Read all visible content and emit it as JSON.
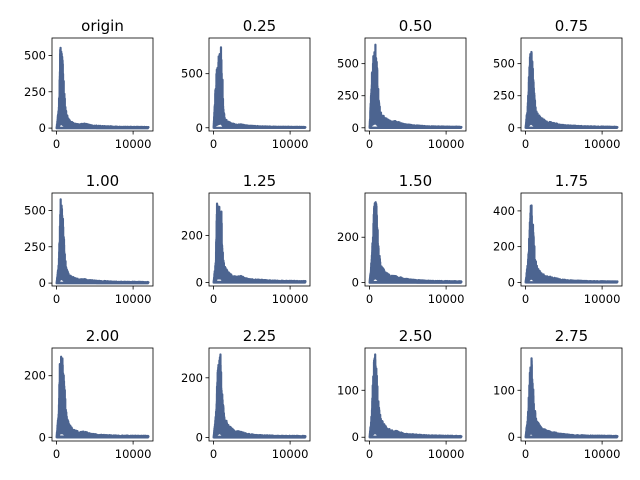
{
  "chart_data": {
    "type": "area",
    "layout": {
      "rows": 3,
      "cols": 4
    },
    "series_color": "#4c6490",
    "x_ticks": [
      0,
      10000
    ],
    "x_tick_labels": [
      "0",
      "10000"
    ],
    "xlim": [
      -600,
      12600
    ],
    "panels": [
      {
        "title": "origin",
        "ylim": [
          -20,
          620
        ],
        "y_ticks": [
          0,
          250,
          500
        ],
        "peaks": [
          [
            300,
            150
          ],
          [
            400,
            400
          ],
          [
            500,
            590
          ],
          [
            650,
            560
          ],
          [
            800,
            450
          ],
          [
            950,
            330
          ],
          [
            1100,
            180
          ],
          [
            1300,
            100
          ],
          [
            1600,
            60
          ],
          [
            2200,
            35
          ],
          [
            3000,
            25
          ],
          [
            3500,
            35
          ],
          [
            4500,
            20
          ],
          [
            6000,
            15
          ],
          [
            8000,
            10
          ],
          [
            12000,
            8
          ]
        ]
      },
      {
        "title": "0.25",
        "ylim": [
          -30,
          830
        ],
        "y_ticks": [
          0,
          500
        ],
        "peaks": [
          [
            300,
            450
          ],
          [
            450,
            560
          ],
          [
            600,
            650
          ],
          [
            750,
            720
          ],
          [
            900,
            780
          ],
          [
            1000,
            800
          ],
          [
            1150,
            500
          ],
          [
            1300,
            150
          ],
          [
            1600,
            80
          ],
          [
            2200,
            45
          ],
          [
            3000,
            30
          ],
          [
            3500,
            35
          ],
          [
            4500,
            20
          ],
          [
            6000,
            15
          ],
          [
            8000,
            10
          ],
          [
            12000,
            8
          ]
        ]
      },
      {
        "title": "0.50",
        "ylim": [
          -25,
          700
        ],
        "y_ticks": [
          0,
          250,
          500
        ],
        "peaks": [
          [
            300,
            420
          ],
          [
            450,
            550
          ],
          [
            600,
            640
          ],
          [
            750,
            670
          ],
          [
            900,
            600
          ],
          [
            1050,
            400
          ],
          [
            1250,
            200
          ],
          [
            1500,
            120
          ],
          [
            2000,
            80
          ],
          [
            2800,
            50
          ],
          [
            3500,
            55
          ],
          [
            4500,
            30
          ],
          [
            6000,
            20
          ],
          [
            8000,
            12
          ],
          [
            12000,
            8
          ]
        ]
      },
      {
        "title": "0.75",
        "ylim": [
          -25,
          700
        ],
        "y_ticks": [
          0,
          250,
          500
        ],
        "peaks": [
          [
            300,
            200
          ],
          [
            450,
            420
          ],
          [
            600,
            600
          ],
          [
            750,
            670
          ],
          [
            900,
            520
          ],
          [
            1050,
            380
          ],
          [
            1250,
            200
          ],
          [
            1500,
            120
          ],
          [
            2000,
            80
          ],
          [
            2800,
            50
          ],
          [
            3500,
            45
          ],
          [
            4500,
            25
          ],
          [
            6000,
            18
          ],
          [
            8000,
            12
          ],
          [
            12000,
            8
          ]
        ]
      },
      {
        "title": "1.00",
        "ylim": [
          -20,
          620
        ],
        "y_ticks": [
          0,
          250,
          500
        ],
        "peaks": [
          [
            300,
            150
          ],
          [
            400,
            350
          ],
          [
            500,
            590
          ],
          [
            650,
            550
          ],
          [
            800,
            500
          ],
          [
            950,
            330
          ],
          [
            1100,
            180
          ],
          [
            1300,
            100
          ],
          [
            1600,
            60
          ],
          [
            2200,
            40
          ],
          [
            3000,
            25
          ],
          [
            3500,
            30
          ],
          [
            4500,
            20
          ],
          [
            6000,
            15
          ],
          [
            8000,
            10
          ],
          [
            12000,
            8
          ]
        ]
      },
      {
        "title": "1.25",
        "ylim": [
          -15,
          380
        ],
        "y_ticks": [
          0,
          200
        ],
        "peaks": [
          [
            300,
            100
          ],
          [
            400,
            330
          ],
          [
            550,
            355
          ],
          [
            700,
            340
          ],
          [
            850,
            350
          ],
          [
            1000,
            340
          ],
          [
            1150,
            180
          ],
          [
            1300,
            90
          ],
          [
            1600,
            60
          ],
          [
            2200,
            35
          ],
          [
            3000,
            25
          ],
          [
            3500,
            30
          ],
          [
            4500,
            15
          ],
          [
            6000,
            12
          ],
          [
            8000,
            8
          ],
          [
            12000,
            6
          ]
        ]
      },
      {
        "title": "1.50",
        "ylim": [
          -15,
          395
        ],
        "y_ticks": [
          0,
          200
        ],
        "peaks": [
          [
            300,
            120
          ],
          [
            450,
            230
          ],
          [
            600,
            360
          ],
          [
            750,
            375
          ],
          [
            900,
            360
          ],
          [
            1050,
            250
          ],
          [
            1250,
            130
          ],
          [
            1500,
            80
          ],
          [
            2000,
            50
          ],
          [
            2800,
            30
          ],
          [
            3500,
            30
          ],
          [
            4500,
            18
          ],
          [
            6000,
            12
          ],
          [
            8000,
            8
          ],
          [
            12000,
            6
          ]
        ]
      },
      {
        "title": "1.75",
        "ylim": [
          -20,
          500
        ],
        "y_ticks": [
          0,
          200,
          400
        ],
        "peaks": [
          [
            300,
            120
          ],
          [
            450,
            230
          ],
          [
            600,
            400
          ],
          [
            750,
            470
          ],
          [
            900,
            380
          ],
          [
            1050,
            260
          ],
          [
            1250,
            150
          ],
          [
            1500,
            90
          ],
          [
            2000,
            55
          ],
          [
            2800,
            35
          ],
          [
            3500,
            30
          ],
          [
            4500,
            18
          ],
          [
            6000,
            12
          ],
          [
            8000,
            8
          ],
          [
            12000,
            6
          ]
        ]
      },
      {
        "title": "2.00",
        "ylim": [
          -12,
          290
        ],
        "y_ticks": [
          0,
          200
        ],
        "peaks": [
          [
            300,
            100
          ],
          [
            400,
            230
          ],
          [
            550,
            280
          ],
          [
            700,
            260
          ],
          [
            850,
            270
          ],
          [
            1000,
            200
          ],
          [
            1150,
            120
          ],
          [
            1300,
            70
          ],
          [
            1600,
            45
          ],
          [
            2200,
            25
          ],
          [
            3000,
            18
          ],
          [
            3500,
            20
          ],
          [
            4500,
            12
          ],
          [
            6000,
            8
          ],
          [
            8000,
            6
          ],
          [
            12000,
            5
          ]
        ]
      },
      {
        "title": "2.25",
        "ylim": [
          -12,
          300
        ],
        "y_ticks": [
          0,
          200
        ],
        "peaks": [
          [
            300,
            80
          ],
          [
            450,
            180
          ],
          [
            600,
            250
          ],
          [
            750,
            290
          ],
          [
            900,
            280
          ],
          [
            1050,
            200
          ],
          [
            1250,
            110
          ],
          [
            1500,
            65
          ],
          [
            2000,
            40
          ],
          [
            2800,
            22
          ],
          [
            3500,
            20
          ],
          [
            4500,
            12
          ],
          [
            6000,
            8
          ],
          [
            8000,
            6
          ],
          [
            12000,
            5
          ]
        ]
      },
      {
        "title": "2.50",
        "ylim": [
          -8,
          190
        ],
        "y_ticks": [
          0,
          100
        ],
        "peaks": [
          [
            300,
            60
          ],
          [
            450,
            130
          ],
          [
            600,
            170
          ],
          [
            750,
            182
          ],
          [
            900,
            150
          ],
          [
            1050,
            100
          ],
          [
            1250,
            60
          ],
          [
            1500,
            40
          ],
          [
            2000,
            25
          ],
          [
            2800,
            15
          ],
          [
            3500,
            14
          ],
          [
            4500,
            8
          ],
          [
            6000,
            6
          ],
          [
            8000,
            4
          ],
          [
            12000,
            3
          ]
        ]
      },
      {
        "title": "2.75",
        "ylim": [
          -8,
          190
        ],
        "y_ticks": [
          0,
          100
        ],
        "peaks": [
          [
            300,
            50
          ],
          [
            450,
            100
          ],
          [
            600,
            150
          ],
          [
            750,
            180
          ],
          [
            900,
            130
          ],
          [
            1050,
            90
          ],
          [
            1250,
            55
          ],
          [
            1500,
            35
          ],
          [
            2000,
            22
          ],
          [
            2800,
            14
          ],
          [
            3500,
            12
          ],
          [
            4500,
            8
          ],
          [
            6000,
            5
          ],
          [
            8000,
            4
          ],
          [
            12000,
            3
          ]
        ]
      }
    ]
  }
}
